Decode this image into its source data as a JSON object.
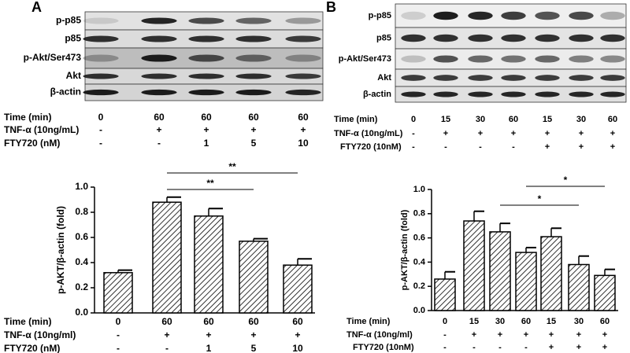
{
  "chart_data": [
    {
      "type": "bar",
      "panel": "A",
      "blot_labels": [
        "p-p85",
        "p85",
        "p-Akt/Ser473",
        "Akt",
        "β-actin"
      ],
      "blot_conditions": [
        {
          "label": "Time (min)",
          "values": [
            "0",
            "60",
            "60",
            "60",
            "60"
          ]
        },
        {
          "label": "TNF-α (10ng/mL)",
          "values": [
            "-",
            "+",
            "+",
            "+",
            "+"
          ]
        },
        {
          "label": "FTY720 (nM)",
          "values": [
            "-",
            "-",
            "1",
            "5",
            "10"
          ]
        }
      ],
      "y_label": "p-AKT/β-actin (fold)",
      "values": [
        0.32,
        0.88,
        0.77,
        0.57,
        0.38
      ],
      "errors": [
        0.02,
        0.04,
        0.06,
        0.02,
        0.05
      ],
      "ylim": [
        0,
        1
      ],
      "yticks": [
        {
          "value": 0,
          "label": "0.0"
        },
        0.2,
        0.4,
        0.6,
        0.8,
        {
          "value": 1,
          "label": "1.0"
        }
      ],
      "significance": [
        "**",
        "**"
      ],
      "conditions": [
        {
          "label": "Time (min)",
          "values": [
            "0",
            "60",
            "60",
            "60",
            "60"
          ]
        },
        {
          "label": "TNF-α (10ng/ml)",
          "values": [
            "-",
            "+",
            "+",
            "+",
            "+"
          ]
        },
        {
          "label": "FTY720 (nM)",
          "values": [
            "-",
            "-",
            "1",
            "5",
            "10"
          ]
        }
      ]
    },
    {
      "type": "bar",
      "panel": "B",
      "blot_labels": [
        "p-p85",
        "p85",
        "p-Akt/Ser473",
        "Akt",
        "β-actin"
      ],
      "blot_conditions": [
        {
          "label": "Time (min)",
          "values": [
            "0",
            "15",
            "30",
            "60",
            "15",
            "30",
            "60"
          ]
        },
        {
          "label": "TNF-α (10ng/mL)",
          "values": [
            "-",
            "+",
            "+",
            "+",
            "+",
            "+",
            "+"
          ]
        },
        {
          "label": "FTY720 (10nM)",
          "values": [
            "-",
            "-",
            "-",
            "-",
            "+",
            "+",
            "+"
          ]
        }
      ],
      "y_label": "p-AKT/β-actin (fold)",
      "values": [
        0.26,
        0.74,
        0.65,
        0.48,
        0.61,
        0.38,
        0.29
      ],
      "errors": [
        0.06,
        0.08,
        0.07,
        0.04,
        0.07,
        0.07,
        0.05
      ],
      "ylim": [
        0,
        1
      ],
      "yticks": [
        {
          "value": 0,
          "label": "0.0"
        },
        0.2,
        0.4,
        0.6,
        0.8,
        {
          "value": 1,
          "label": "1.0"
        }
      ],
      "significance": [
        "*",
        "*"
      ],
      "conditions": [
        {
          "label": "Time (min)",
          "values": [
            "0",
            "15",
            "30",
            "60",
            "15",
            "30",
            "60"
          ]
        },
        {
          "label": "TNF-α (10ng/ml)",
          "values": [
            "-",
            "+",
            "+",
            "+",
            "+",
            "+",
            "+"
          ]
        },
        {
          "label": "FTY720 (10nM)",
          "values": [
            "-",
            "-",
            "-",
            "-",
            "+",
            "+",
            "+"
          ]
        }
      ]
    }
  ]
}
